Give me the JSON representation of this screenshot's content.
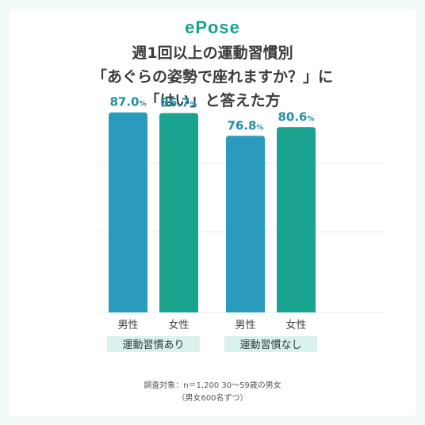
{
  "logo": {
    "text": "ePose",
    "color": "#1aa38f"
  },
  "title": {
    "line1": "週1回以上の運動習慣別",
    "line2": "「あぐらの姿勢で座れますか？」に",
    "line3": "「はい」と答えた方"
  },
  "footnote": {
    "line1": "調査対象：n＝1,200 30〜59歳の男女",
    "line2": "（男女600名ずつ）"
  },
  "colors": {
    "male": "#2a9bbc",
    "female": "#1aa38f",
    "group_band": "#d8f2ee",
    "value_text": "#1e8fa8",
    "grid": "#e4eeec"
  },
  "chart_data": {
    "type": "bar",
    "groups": [
      {
        "label": "運動習慣あり",
        "bars": [
          {
            "category": "男性",
            "value": 87.0,
            "label": "87.0%"
          },
          {
            "category": "女性",
            "value": 86.7,
            "label": "86.7%"
          }
        ]
      },
      {
        "label": "運動習慣なし",
        "bars": [
          {
            "category": "男性",
            "value": 76.8,
            "label": "76.8%"
          },
          {
            "category": "女性",
            "value": 80.6,
            "label": "80.6%"
          }
        ]
      }
    ],
    "ylim": [
      0,
      100
    ],
    "grid": true
  }
}
